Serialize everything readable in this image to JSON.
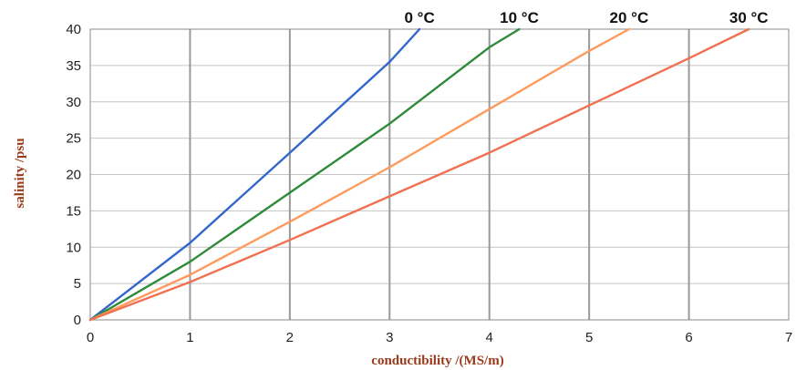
{
  "chart_data": {
    "type": "line",
    "title": "",
    "xlabel": "conductibility  /(MS/m)",
    "ylabel": "salinity  /psu",
    "xlim": [
      0,
      7
    ],
    "ylim": [
      0,
      40
    ],
    "x_ticks": [
      0,
      1,
      2,
      3,
      4,
      5,
      6,
      7
    ],
    "y_ticks": [
      0,
      5,
      10,
      15,
      20,
      25,
      30,
      35,
      40
    ],
    "grid": true,
    "legend": "inline labels above line ends",
    "series": [
      {
        "name": "0 °C",
        "color": "#3366cc",
        "x": [
          0,
          1,
          2,
          3,
          3.3
        ],
        "y": [
          0,
          10.6,
          23,
          35.5,
          40
        ]
      },
      {
        "name": "10 °C",
        "color": "#2e8b3a",
        "x": [
          0,
          1,
          2,
          3,
          4,
          4.3
        ],
        "y": [
          0,
          8,
          17.5,
          27,
          37.5,
          40
        ]
      },
      {
        "name": "20 °C",
        "color": "#ff9a5c",
        "x": [
          0,
          1,
          2,
          3,
          4,
          5,
          5.4
        ],
        "y": [
          0,
          6.2,
          13.5,
          21,
          29,
          37,
          40
        ]
      },
      {
        "name": "30 °C",
        "color": "#f07050",
        "x": [
          0,
          1,
          2,
          3,
          4,
          5,
          6,
          6.6
        ],
        "y": [
          0,
          5.2,
          11,
          17,
          23,
          29.5,
          36,
          40
        ]
      }
    ]
  }
}
